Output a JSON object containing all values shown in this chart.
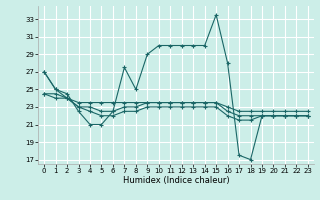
{
  "xlabel": "Humidex (Indice chaleur)",
  "bg_color": "#cceee8",
  "grid_color": "#ffffff",
  "line_color": "#1a6666",
  "xlim": [
    -0.5,
    23.5
  ],
  "ylim": [
    16.5,
    34.5
  ],
  "xticks": [
    0,
    1,
    2,
    3,
    4,
    5,
    6,
    7,
    8,
    9,
    10,
    11,
    12,
    13,
    14,
    15,
    16,
    17,
    18,
    19,
    20,
    21,
    22,
    23
  ],
  "yticks": [
    17,
    19,
    21,
    23,
    25,
    27,
    29,
    31,
    33
  ],
  "series1": [
    [
      0,
      27
    ],
    [
      1,
      25
    ],
    [
      2,
      24.5
    ],
    [
      3,
      22.5
    ],
    [
      4,
      21
    ],
    [
      5,
      21
    ],
    [
      6,
      22.5
    ],
    [
      7,
      27.5
    ],
    [
      8,
      25
    ],
    [
      9,
      29
    ],
    [
      10,
      30
    ],
    [
      11,
      30
    ],
    [
      12,
      30
    ],
    [
      13,
      30
    ],
    [
      14,
      30
    ],
    [
      15,
      33.5
    ],
    [
      16,
      28
    ],
    [
      17,
      17.5
    ],
    [
      18,
      17
    ],
    [
      19,
      22
    ],
    [
      20,
      22
    ],
    [
      21,
      22
    ],
    [
      22,
      22
    ],
    [
      23,
      22
    ]
  ],
  "series2": [
    [
      0,
      27
    ],
    [
      1,
      25
    ],
    [
      2,
      24
    ],
    [
      3,
      23
    ],
    [
      4,
      23
    ],
    [
      5,
      22.5
    ],
    [
      6,
      22.5
    ],
    [
      7,
      23
    ],
    [
      8,
      23
    ],
    [
      9,
      23.5
    ],
    [
      10,
      23.5
    ],
    [
      11,
      23.5
    ],
    [
      12,
      23.5
    ],
    [
      13,
      23.5
    ],
    [
      14,
      23.5
    ],
    [
      15,
      23.5
    ],
    [
      16,
      23
    ],
    [
      17,
      22.5
    ],
    [
      18,
      22.5
    ],
    [
      19,
      22.5
    ],
    [
      20,
      22.5
    ],
    [
      21,
      22.5
    ],
    [
      22,
      22.5
    ],
    [
      23,
      22.5
    ]
  ],
  "series3": [
    [
      0,
      24.5
    ],
    [
      1,
      24.5
    ],
    [
      2,
      24
    ],
    [
      3,
      23.5
    ],
    [
      4,
      23.5
    ],
    [
      5,
      23.5
    ],
    [
      6,
      23.5
    ],
    [
      7,
      23.5
    ],
    [
      8,
      23.5
    ],
    [
      9,
      23.5
    ],
    [
      10,
      23.5
    ],
    [
      11,
      23.5
    ],
    [
      12,
      23.5
    ],
    [
      13,
      23.5
    ],
    [
      14,
      23.5
    ],
    [
      15,
      23.5
    ],
    [
      16,
      22.5
    ],
    [
      17,
      22
    ],
    [
      18,
      22
    ],
    [
      19,
      22
    ],
    [
      20,
      22
    ],
    [
      21,
      22
    ],
    [
      22,
      22
    ],
    [
      23,
      22
    ]
  ],
  "series4": [
    [
      0,
      24.5
    ],
    [
      1,
      24
    ],
    [
      2,
      24
    ],
    [
      3,
      23
    ],
    [
      4,
      22.5
    ],
    [
      5,
      22
    ],
    [
      6,
      22
    ],
    [
      7,
      22.5
    ],
    [
      8,
      22.5
    ],
    [
      9,
      23
    ],
    [
      10,
      23
    ],
    [
      11,
      23
    ],
    [
      12,
      23
    ],
    [
      13,
      23
    ],
    [
      14,
      23
    ],
    [
      15,
      23
    ],
    [
      16,
      22
    ],
    [
      17,
      21.5
    ],
    [
      18,
      21.5
    ],
    [
      19,
      22
    ],
    [
      20,
      22
    ],
    [
      21,
      22
    ],
    [
      22,
      22
    ],
    [
      23,
      22
    ]
  ]
}
